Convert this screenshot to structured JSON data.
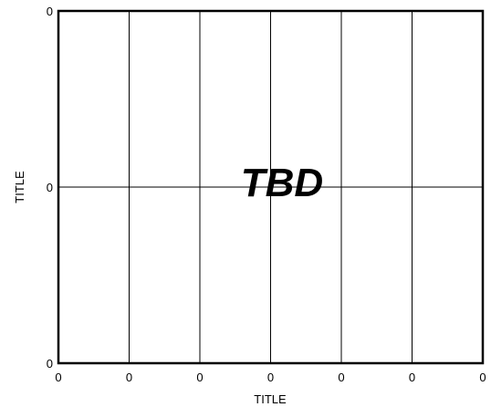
{
  "chart_data": {
    "type": "line",
    "title": "",
    "xlabel": "TITLE",
    "ylabel": "TITLE",
    "x_ticks": [
      "0",
      "0",
      "0",
      "0",
      "0",
      "0",
      "0"
    ],
    "y_ticks": [
      "0",
      "0",
      "0"
    ],
    "annotation": "TBD",
    "grid": true,
    "series": [],
    "line_color": "#000000",
    "background": "#ffffff"
  }
}
